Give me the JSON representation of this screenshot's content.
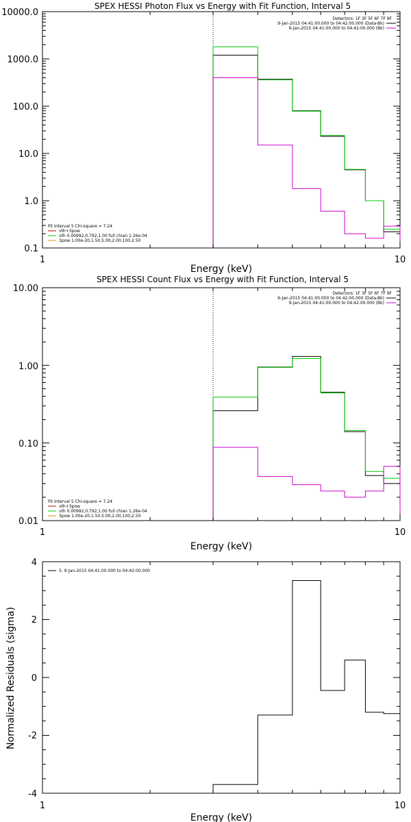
{
  "chart_data": [
    {
      "type": "line",
      "title": "SPEX HESSI Photon Flux vs Energy with Fit Function, Interval 5",
      "xlabel": "Energy (keV)",
      "ylabel": "",
      "xscale": "log",
      "yscale": "log",
      "xlim": [
        1,
        10
      ],
      "ylim": [
        0.1,
        10000
      ],
      "x_ticks": [
        "1",
        "10"
      ],
      "y_ticks": [
        "0.1",
        "1.0",
        "10.0",
        "100.0",
        "1000.0",
        "10000.0"
      ],
      "vline_x": 3.0,
      "legend_topright": [
        {
          "text": "Detectors: 1F 3F 5F 6F 7F 9F",
          "color": "#000000"
        },
        {
          "text": "9-Jan-2015 04:41:00.000 to 04:42:00.000 (Data-Bk)",
          "color": "#000000"
        },
        {
          "text": "9-Jan-2015 04:41:00.000 to 04:42:00.000 (Bk)",
          "color": "#cc00cc"
        }
      ],
      "legend_bottomleft": [
        {
          "text": "Fit Interval 5   Chi-square = 7.24",
          "color": "#000000"
        },
        {
          "text": "vth+3pow",
          "color": "#cc0000"
        },
        {
          "text": "vth 0.00992,0.792,1.00   full chian 1.26e-04",
          "color": "#00cc00"
        },
        {
          "text": "3pow 1.00e-20,1.50,5.00,2.00,100,2.50",
          "color": "#cc9900"
        }
      ],
      "series": [
        {
          "color": "#000000",
          "edges": [
            3,
            4,
            5,
            6,
            7,
            8,
            9,
            10
          ],
          "values": [
            1200,
            370,
            80,
            23,
            4.5,
            1.0,
            0.22
          ]
        },
        {
          "color": "#00cc00",
          "edges": [
            3,
            4,
            5,
            6,
            7,
            8,
            9,
            10
          ],
          "values": [
            1800,
            360,
            78,
            24,
            4.6,
            1.0,
            0.25
          ]
        },
        {
          "color": "#cc00cc",
          "edges": [
            3,
            4,
            5,
            6,
            7,
            8,
            9,
            10
          ],
          "values": [
            400,
            15,
            1.8,
            0.6,
            0.2,
            0.16,
            0.29
          ]
        }
      ]
    },
    {
      "type": "line",
      "title": "SPEX HESSI Count Flux vs Energy with Fit Function, Interval 5",
      "xlabel": "Energy (keV)",
      "ylabel": "",
      "xscale": "log",
      "yscale": "log",
      "xlim": [
        1,
        10
      ],
      "ylim": [
        0.01,
        10
      ],
      "x_ticks": [
        "1",
        "10"
      ],
      "y_ticks": [
        "0.01",
        "0.10",
        "1.00",
        "10.00"
      ],
      "vline_x": 3.0,
      "legend_topright": [
        {
          "text": "Detectors: 1F 3F 5F 6F 7F 9F",
          "color": "#000000"
        },
        {
          "text": "9-Jan-2015 04:41:00.000 to 04:42:00.000 (Data-Bk)",
          "color": "#000000"
        },
        {
          "text": "9-Jan-2015 04:41:00.000 to 04:42:00.000 (Bk)",
          "color": "#cc00cc"
        }
      ],
      "legend_bottomleft": [
        {
          "text": "Fit Interval 5   Chi-square = 7.24",
          "color": "#000000"
        },
        {
          "text": "vth+3pow",
          "color": "#cc0000"
        },
        {
          "text": "vth 0.00992,0.792,1.00   full chian 1.26e-04",
          "color": "#00cc00"
        },
        {
          "text": "3pow 1.00e-20,1.50,5.00,2.00,100,2.50",
          "color": "#cc9900"
        }
      ],
      "series": [
        {
          "color": "#000000",
          "edges": [
            3,
            4,
            5,
            6,
            7,
            8,
            9,
            10
          ],
          "values": [
            0.26,
            0.95,
            1.3,
            0.45,
            0.14,
            0.038,
            0.03
          ]
        },
        {
          "color": "#00cc00",
          "edges": [
            3,
            4,
            5,
            6,
            7,
            8,
            9,
            10
          ],
          "values": [
            0.39,
            0.94,
            1.22,
            0.44,
            0.145,
            0.043,
            0.035
          ]
        },
        {
          "color": "#cc00cc",
          "edges": [
            3,
            4,
            5,
            6,
            7,
            8,
            9,
            10
          ],
          "values": [
            0.088,
            0.037,
            0.029,
            0.024,
            0.02,
            0.024,
            0.05
          ]
        }
      ]
    },
    {
      "type": "line",
      "title": "",
      "xlabel": "Energy (keV)",
      "ylabel": "Normalized Residuals (sigma)",
      "xscale": "log",
      "yscale": "linear",
      "xlim": [
        1,
        10
      ],
      "ylim": [
        -4,
        4
      ],
      "x_ticks": [
        "1",
        "10"
      ],
      "y_ticks": [
        "-4",
        "-2",
        "0",
        "2",
        "4"
      ],
      "legend_topleft": [
        {
          "text": "5. 9-Jan-2015 04:41:00.000 to 04:42:00.000",
          "color": "#000000"
        }
      ],
      "series": [
        {
          "color": "#000000",
          "edges": [
            3,
            4,
            5,
            6,
            7,
            8,
            9,
            10
          ],
          "values": [
            -3.7,
            -1.3,
            3.35,
            -0.45,
            0.6,
            -1.2,
            -1.25
          ]
        }
      ]
    }
  ]
}
